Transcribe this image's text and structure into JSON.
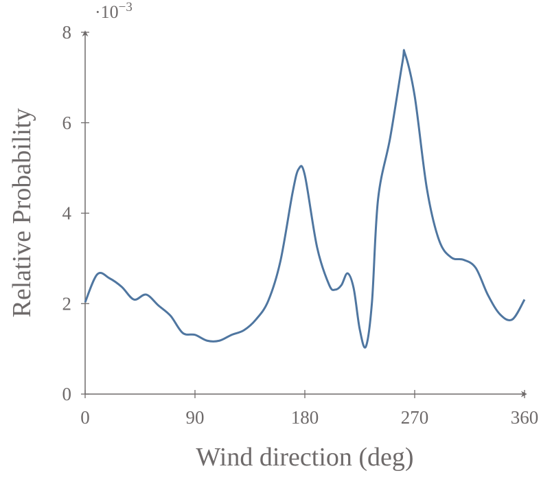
{
  "chart_data": {
    "type": "line",
    "x_label": "Wind direction (deg)",
    "y_label": "Relative Probability",
    "y_scale_label": "·10",
    "y_scale_exponent": "−3",
    "xlim": [
      0,
      360
    ],
    "xticks": [
      0,
      90,
      180,
      270,
      360
    ],
    "ylim": [
      0,
      8
    ],
    "yticks": [
      0,
      2,
      4,
      6,
      8
    ],
    "x": [
      0,
      10,
      20,
      30,
      40,
      50,
      60,
      70,
      80,
      90,
      100,
      110,
      120,
      130,
      140,
      150,
      160,
      170,
      175,
      180,
      190,
      200,
      205,
      210,
      215,
      220,
      225,
      230,
      235,
      240,
      250,
      260,
      262,
      270,
      280,
      290,
      300,
      310,
      320,
      330,
      340,
      350,
      360
    ],
    "series": [
      {
        "color": "#4f76a0",
        "values": [
          2.03,
          2.65,
          2.56,
          2.37,
          2.09,
          2.2,
          1.96,
          1.73,
          1.35,
          1.31,
          1.18,
          1.18,
          1.31,
          1.41,
          1.65,
          2.06,
          2.94,
          4.46,
          4.98,
          4.84,
          3.25,
          2.41,
          2.31,
          2.41,
          2.67,
          2.34,
          1.43,
          1.05,
          2.03,
          4.31,
          5.68,
          7.34,
          7.53,
          6.59,
          4.54,
          3.4,
          3.02,
          2.97,
          2.79,
          2.19,
          1.76,
          1.65,
          2.09
        ]
      }
    ]
  }
}
